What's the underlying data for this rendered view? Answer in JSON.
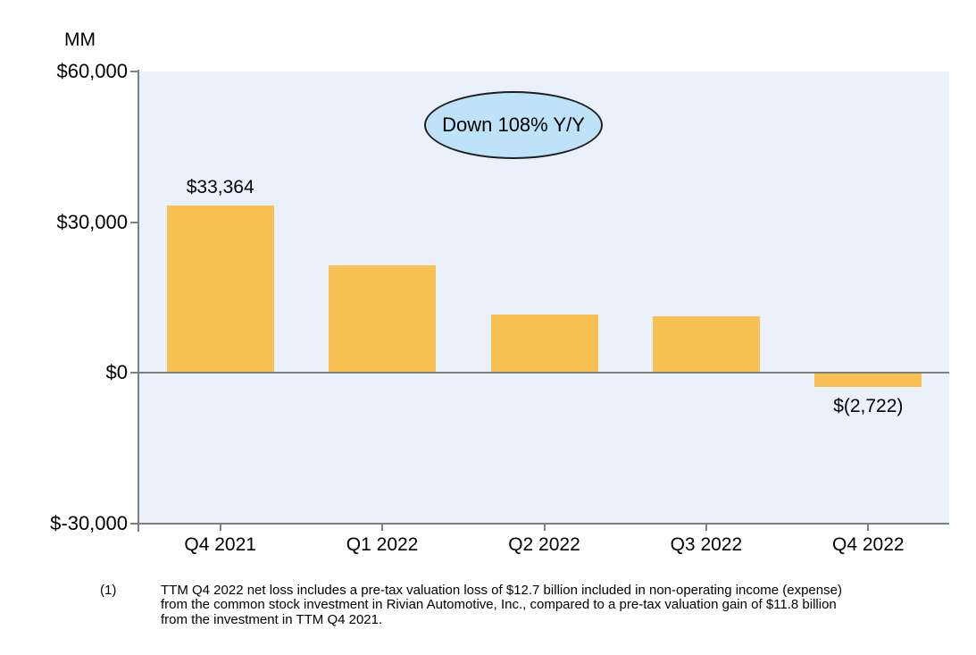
{
  "chart_data": {
    "type": "bar",
    "unit_label": "MM",
    "categories": [
      "Q4 2021",
      "Q1 2022",
      "Q2 2022",
      "Q3 2022",
      "Q4 2022"
    ],
    "values": [
      33364,
      21413,
      11607,
      11323,
      -2722
    ],
    "visible_data_labels": [
      {
        "category_index": 0,
        "text": "$33,364",
        "position": "above"
      },
      {
        "category_index": 4,
        "text": "$(2,722)",
        "position": "below"
      }
    ],
    "y_ticks": [
      {
        "value": 60000,
        "label": "$60,000"
      },
      {
        "value": 30000,
        "label": "$30,000"
      },
      {
        "value": 0,
        "label": "$0"
      },
      {
        "value": -30000,
        "label": "$-30,000"
      }
    ],
    "ylim": [
      -30000,
      60000
    ],
    "grid": false,
    "legend": false,
    "annotation": {
      "text": "Down 108% Y/Y"
    },
    "colors": {
      "bar": "#F9C053",
      "plot_background": "#EAF1FB",
      "axis": "#808080",
      "annotation_fill": "#BEE3F8",
      "annotation_border": "#1F1F1F",
      "text": "#000000"
    }
  },
  "footnote": {
    "marker": "(1)",
    "lines": [
      "TTM Q4 2022 net loss includes a pre-tax valuation loss of $12.7 billion included in non-operating income (expense)",
      "from the common stock investment in Rivian Automotive, Inc., compared to a pre-tax valuation gain of $11.8 billion",
      "from the investment in TTM Q4 2021."
    ]
  }
}
